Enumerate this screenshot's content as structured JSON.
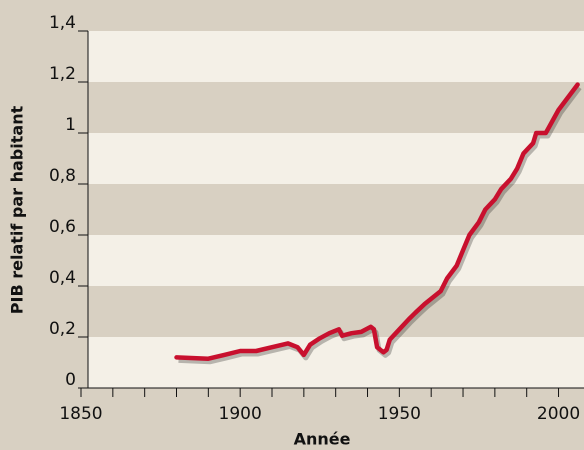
{
  "chart_data": {
    "type": "line",
    "xlabel": "Année",
    "ylabel": "PIB relatif par habitant",
    "x": [
      1880,
      1890,
      1895,
      1900,
      1905,
      1910,
      1915,
      1918,
      1920,
      1922,
      1925,
      1928,
      1931,
      1932,
      1935,
      1938,
      1941,
      1942,
      1943,
      1945,
      1946,
      1947,
      1950,
      1953,
      1955,
      1958,
      1960,
      1963,
      1965,
      1968,
      1970,
      1972,
      1975,
      1977,
      1980,
      1982,
      1985,
      1987,
      1989,
      1992,
      1993,
      1996,
      2000,
      2006
    ],
    "series": [
      {
        "color": "#c8102e",
        "values": [
          0.12,
          0.115,
          0.13,
          0.145,
          0.145,
          0.16,
          0.175,
          0.16,
          0.13,
          0.17,
          0.195,
          0.215,
          0.23,
          0.205,
          0.215,
          0.22,
          0.24,
          0.23,
          0.16,
          0.14,
          0.15,
          0.19,
          0.23,
          0.27,
          0.295,
          0.33,
          0.35,
          0.38,
          0.43,
          0.48,
          0.54,
          0.6,
          0.65,
          0.7,
          0.74,
          0.78,
          0.82,
          0.86,
          0.92,
          0.96,
          1.0,
          1.0,
          1.09,
          1.19
        ]
      }
    ],
    "xlim": [
      1850,
      2008
    ],
    "xticks": [
      1850,
      1900,
      1950,
      2000
    ],
    "xminor_ticks": [
      1860,
      1870,
      1880,
      1890,
      1910,
      1920,
      1930,
      1940,
      1960,
      1970,
      1980,
      1990
    ],
    "ylim": [
      0,
      1.4
    ],
    "yticks": [
      0,
      {
        "value": 0.2,
        "label": "0,2"
      },
      {
        "value": 0.4,
        "label": "0,4"
      },
      {
        "value": 0.6,
        "label": "0,6"
      },
      {
        "value": 0.8,
        "label": "0,8"
      },
      1,
      {
        "value": 1.2,
        "label": "1,2"
      },
      {
        "value": 1.4,
        "label": "1,4"
      }
    ]
  }
}
